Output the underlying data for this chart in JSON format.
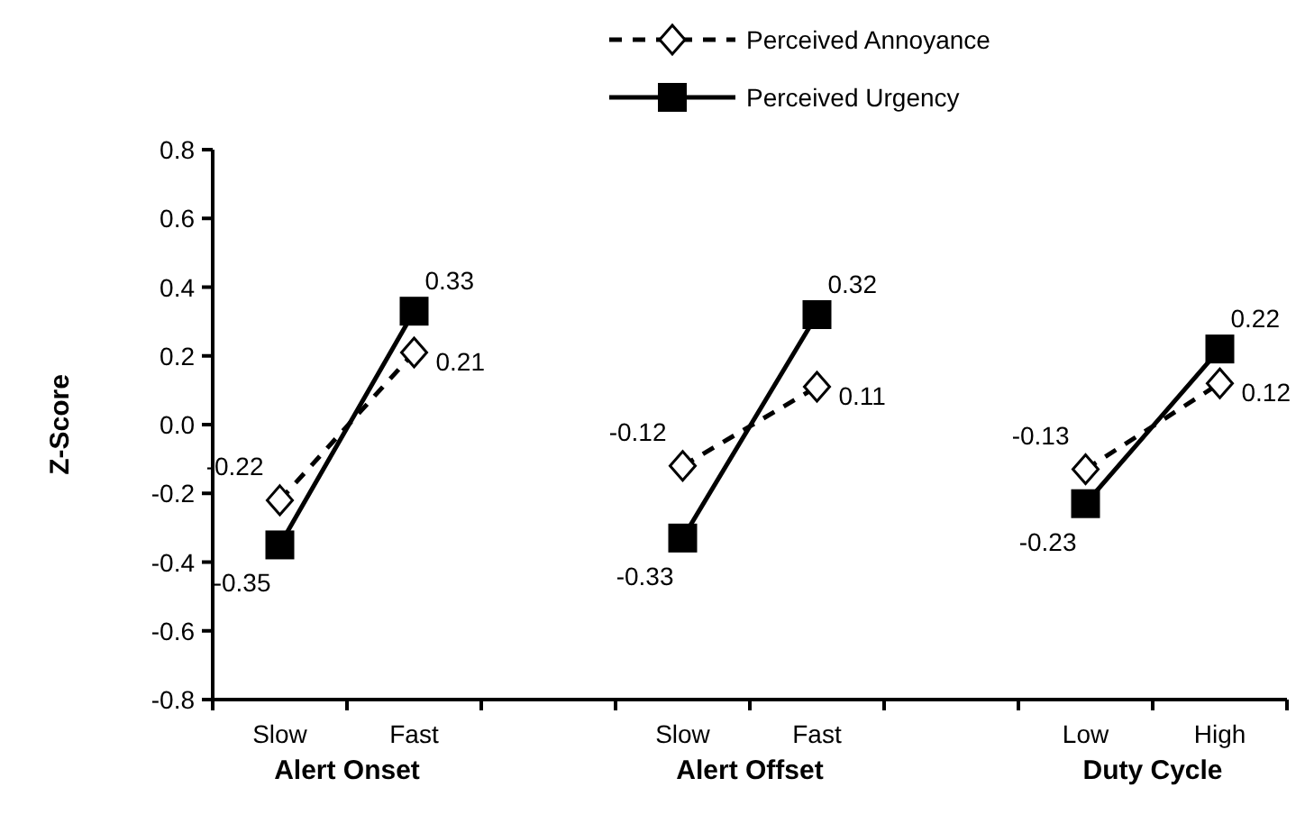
{
  "chart_data": {
    "type": "line",
    "ylabel": "Z-Score",
    "categories": [
      "Slow",
      "Fast",
      null,
      "Slow",
      "Fast",
      null,
      "Low",
      "High"
    ],
    "annotations": [
      "Alert Onset",
      "Alert Offset",
      "Duty Cycle"
    ],
    "series": [
      {
        "name": "Perceived Annoyance",
        "color": "#000000",
        "marker": "diamond",
        "line_style": "dashed",
        "values": [
          -0.22,
          0.21,
          null,
          -0.12,
          0.11,
          null,
          -0.13,
          0.12
        ]
      },
      {
        "name": "Perceived Urgency",
        "color": "#000000",
        "marker": "square",
        "line_style": "solid",
        "values": [
          -0.35,
          0.33,
          null,
          -0.33,
          0.32,
          null,
          -0.23,
          0.22
        ]
      }
    ],
    "ylim": [
      -0.8,
      0.8
    ],
    "yticks": [
      {
        "value": -0.8,
        "label": "-0.8"
      },
      {
        "value": -0.6,
        "label": "-0.6"
      },
      {
        "value": -0.4,
        "label": "-0.4"
      },
      {
        "value": -0.2,
        "label": "-0.2"
      },
      {
        "value": 0,
        "label": "0.0"
      },
      {
        "value": 0.2,
        "label": "0.2"
      },
      {
        "value": 0.4,
        "label": "0.4"
      },
      {
        "value": 0.6,
        "label": "0.6"
      },
      {
        "value": 0.8,
        "label": "0.8"
      }
    ],
    "grid": false,
    "legend": "top",
    "data_labels": true
  }
}
